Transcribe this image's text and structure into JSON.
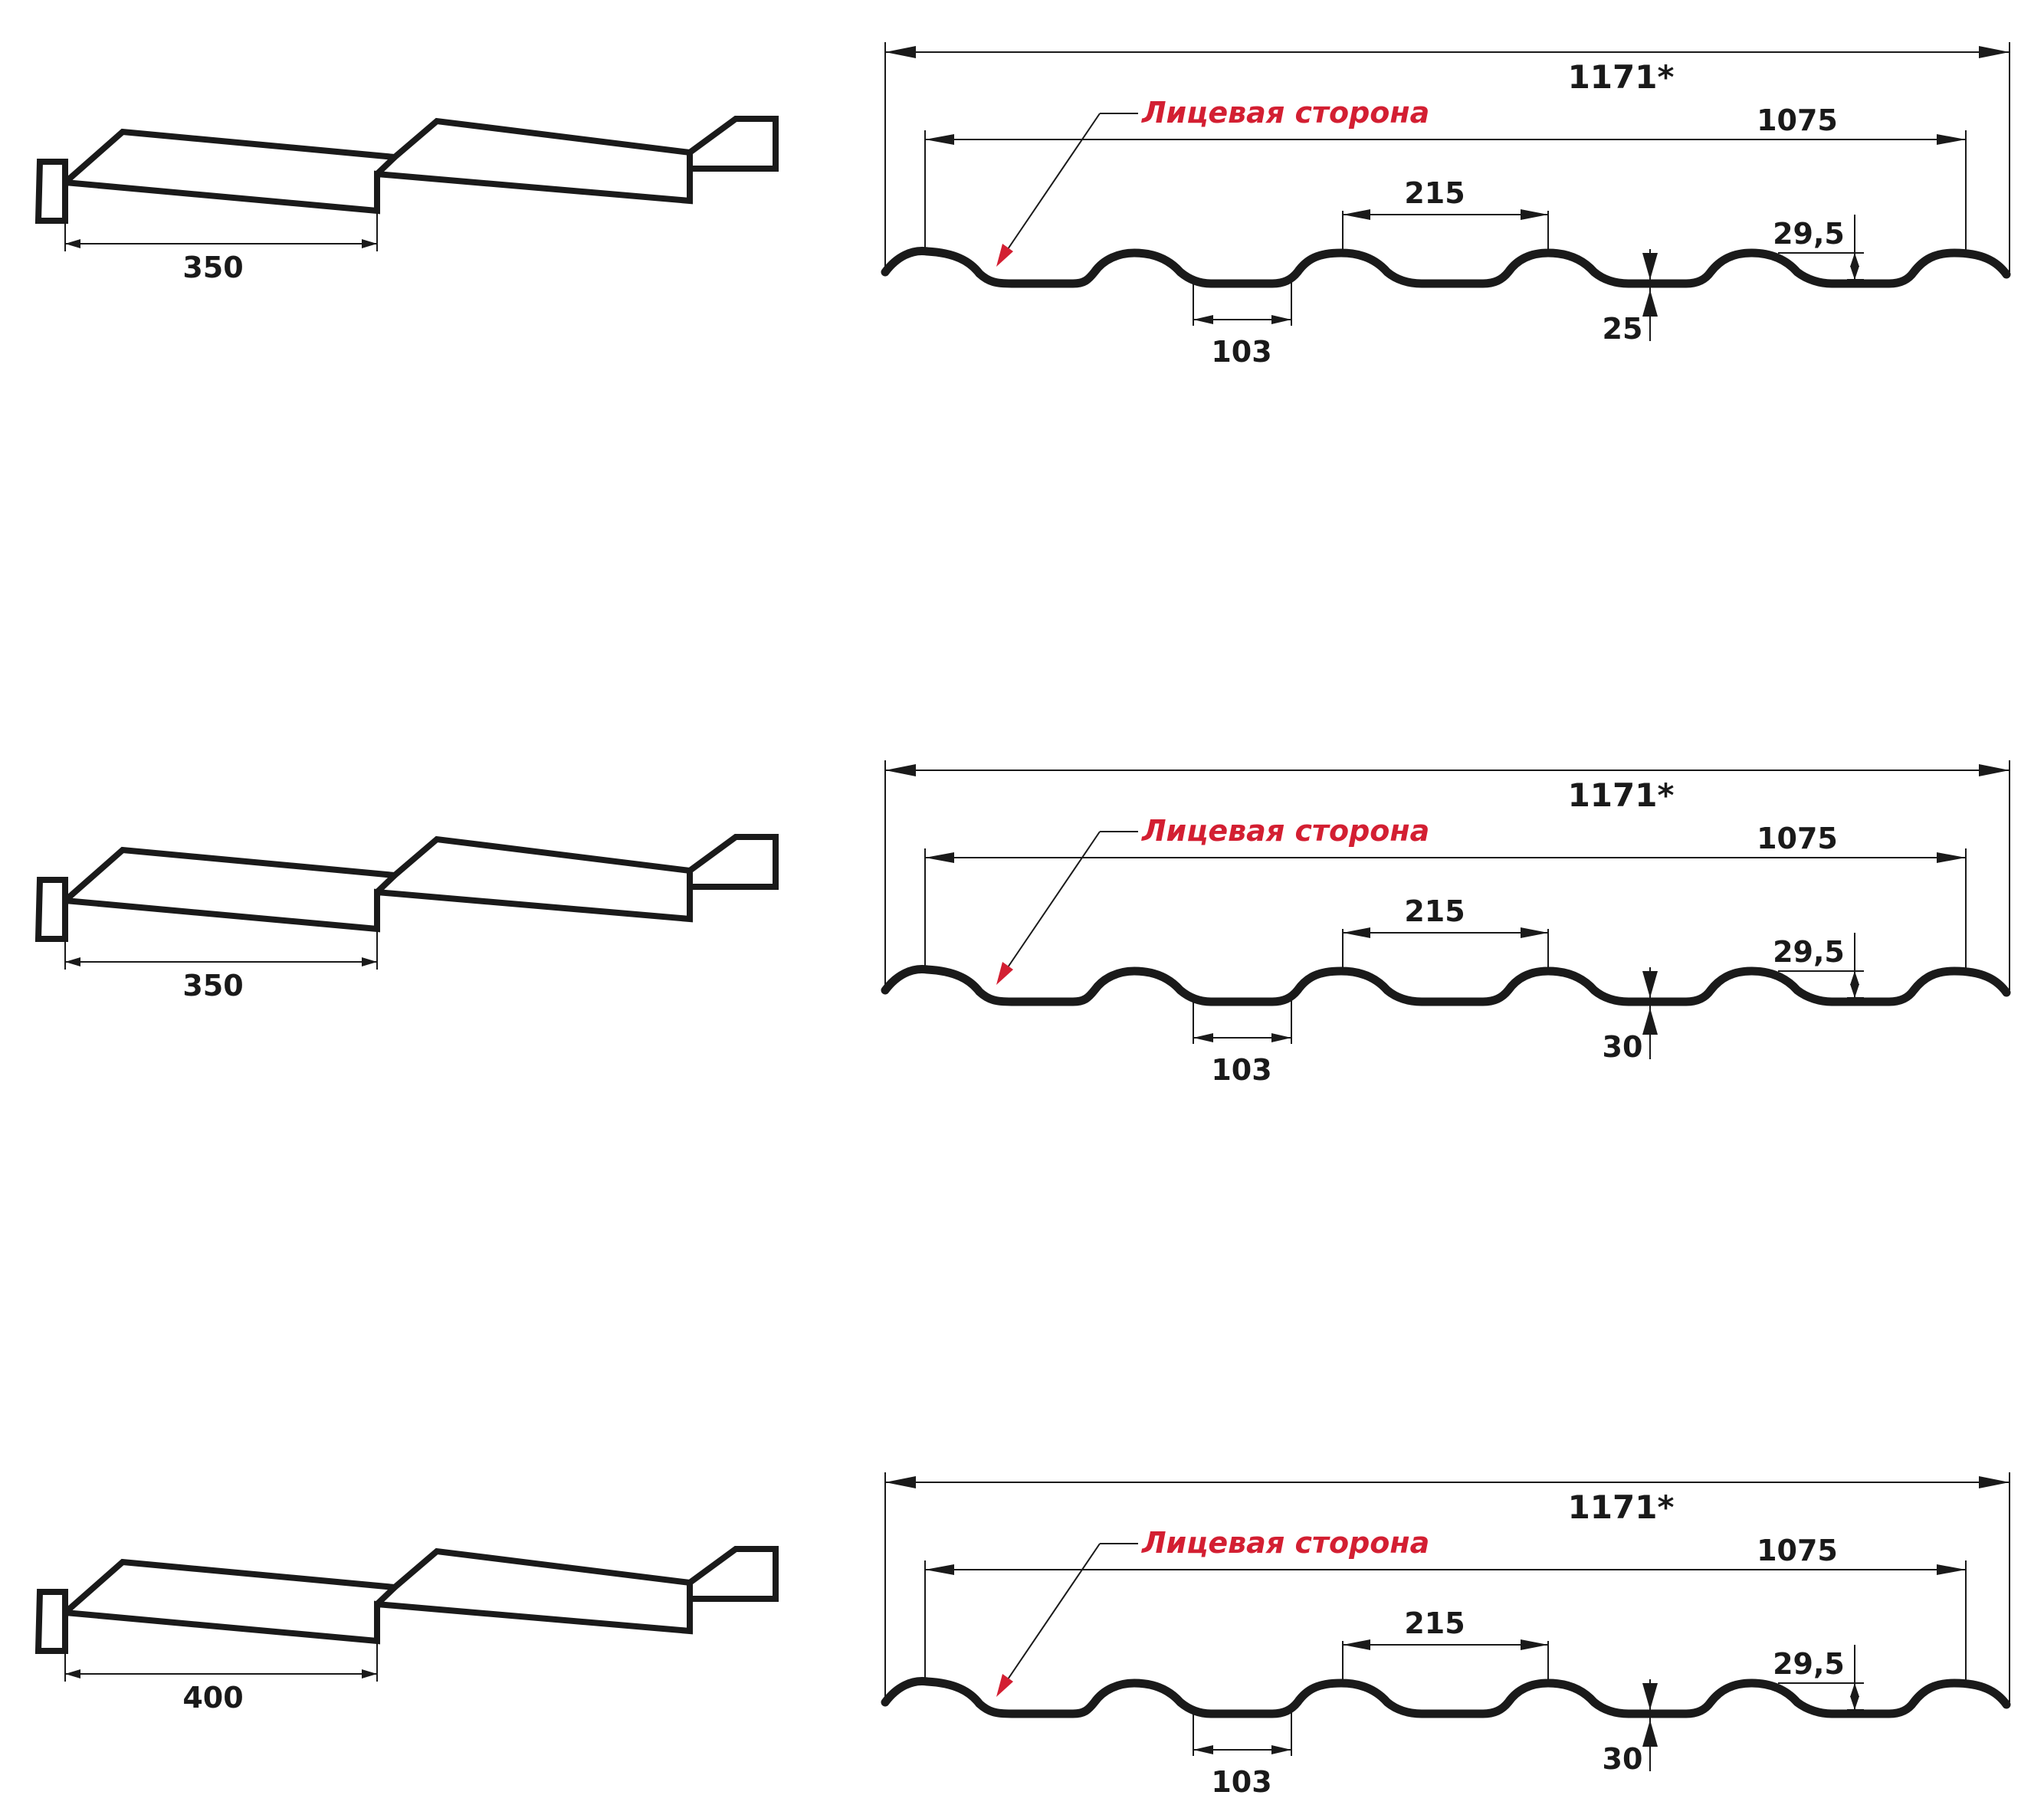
{
  "panels": [
    {
      "side_width": "350",
      "total_width": "1171*",
      "effective_width": "1075",
      "face_side_label": "Лицевая сторона",
      "pitch": "215",
      "trough_width": "103",
      "wave_height": "29,5",
      "step_height": "25"
    },
    {
      "side_width": "350",
      "total_width": "1171*",
      "effective_width": "1075",
      "face_side_label": "Лицевая сторона",
      "pitch": "215",
      "trough_width": "103",
      "wave_height": "29,5",
      "step_height": "30"
    },
    {
      "side_width": "400",
      "total_width": "1171*",
      "effective_width": "1075",
      "face_side_label": "Лицевая сторона",
      "pitch": "215",
      "trough_width": "103",
      "wave_height": "29,5",
      "step_height": "30"
    }
  ],
  "colors": {
    "line": "#1a1a1a",
    "accent": "#d31f32"
  }
}
